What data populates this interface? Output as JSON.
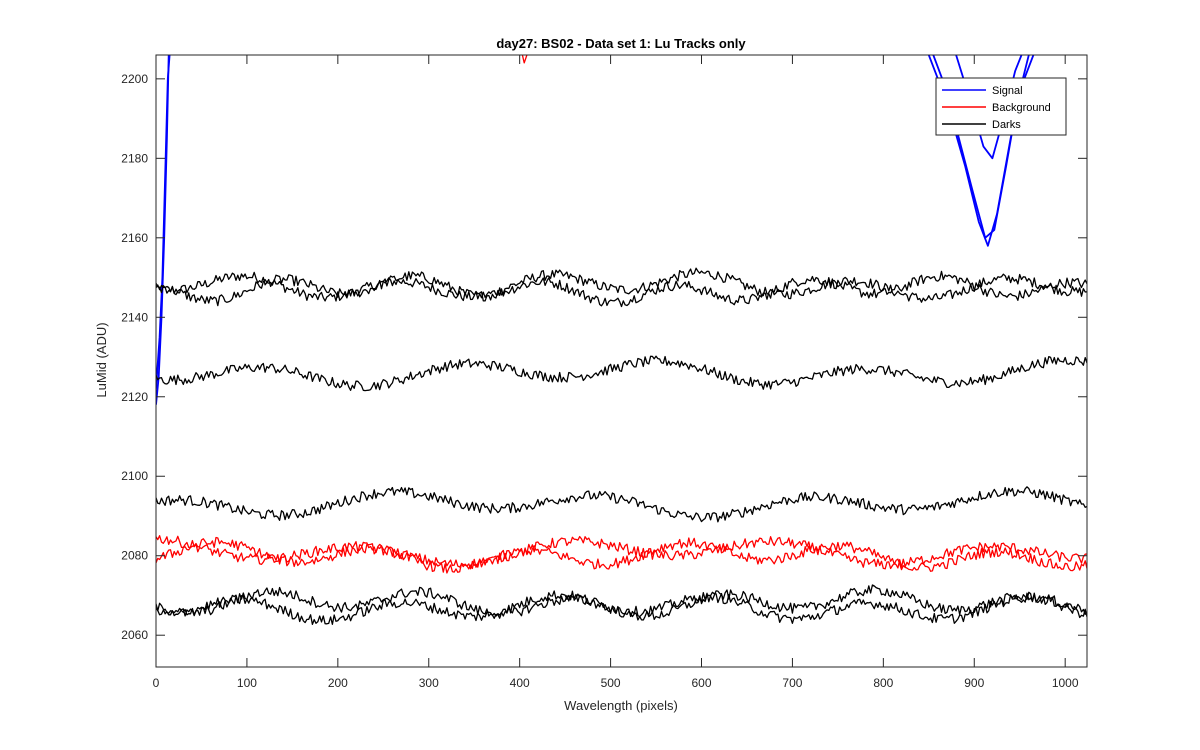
{
  "chart_data": {
    "type": "line",
    "title": "day27: BS02 - Data set 1: Lu Tracks only",
    "xlabel": "Wavelength (pixels)",
    "ylabel": "LuMid (ADU)",
    "xlim": [
      0,
      1024
    ],
    "ylim": [
      2052,
      2206
    ],
    "xticks": [
      0,
      100,
      200,
      300,
      400,
      500,
      600,
      700,
      800,
      900,
      1000
    ],
    "yticks": [
      2060,
      2080,
      2100,
      2120,
      2140,
      2160,
      2180,
      2200
    ],
    "grid": false,
    "legend_position": "top-right",
    "legend": [
      "Signal",
      "Background",
      "Darks"
    ],
    "colors": {
      "Signal": "#0000ff",
      "Background": "#ff0000",
      "Darks": "#000000",
      "axes": "#262626"
    },
    "series": [
      {
        "group": "Signal",
        "description_points": [
          [
            0,
            2118
          ],
          [
            3,
            2125
          ],
          [
            6,
            2140
          ],
          [
            9,
            2160
          ],
          [
            12,
            2185
          ],
          [
            14,
            2206
          ]
        ]
      },
      {
        "group": "Signal",
        "description_points": [
          [
            0,
            2122
          ],
          [
            4,
            2135
          ],
          [
            7,
            2150
          ],
          [
            10,
            2175
          ],
          [
            13,
            2200
          ],
          [
            15,
            2206
          ]
        ]
      },
      {
        "group": "Signal",
        "description_points": [
          [
            850,
            2206
          ],
          [
            860,
            2200
          ],
          [
            875,
            2190
          ],
          [
            890,
            2178
          ],
          [
            905,
            2164
          ],
          [
            915,
            2158
          ],
          [
            925,
            2166
          ],
          [
            940,
            2185
          ],
          [
            955,
            2200
          ],
          [
            965,
            2206
          ]
        ]
      },
      {
        "group": "Signal",
        "description_points": [
          [
            855,
            2206
          ],
          [
            868,
            2198
          ],
          [
            882,
            2186
          ],
          [
            898,
            2172
          ],
          [
            912,
            2160
          ],
          [
            922,
            2162
          ],
          [
            935,
            2178
          ],
          [
            948,
            2195
          ],
          [
            960,
            2206
          ]
        ]
      },
      {
        "group": "Signal",
        "description_points": [
          [
            880,
            2206
          ],
          [
            895,
            2195
          ],
          [
            910,
            2183
          ],
          [
            920,
            2180
          ],
          [
            932,
            2190
          ],
          [
            945,
            2202
          ],
          [
            952,
            2206
          ]
        ]
      },
      {
        "group": "Background",
        "description_points": [
          [
            403,
            2206
          ],
          [
            405,
            2204
          ],
          [
            408,
            2206
          ]
        ]
      },
      {
        "group": "Darks",
        "base": 2148
      },
      {
        "group": "Darks",
        "base": 2147
      },
      {
        "group": "Darks",
        "base": 2126
      },
      {
        "group": "Darks",
        "base": 2093
      },
      {
        "group": "Background",
        "base": 2081
      },
      {
        "group": "Background",
        "base": 2080
      },
      {
        "group": "Darks",
        "base": 2068
      },
      {
        "group": "Darks",
        "base": 2067
      }
    ]
  }
}
